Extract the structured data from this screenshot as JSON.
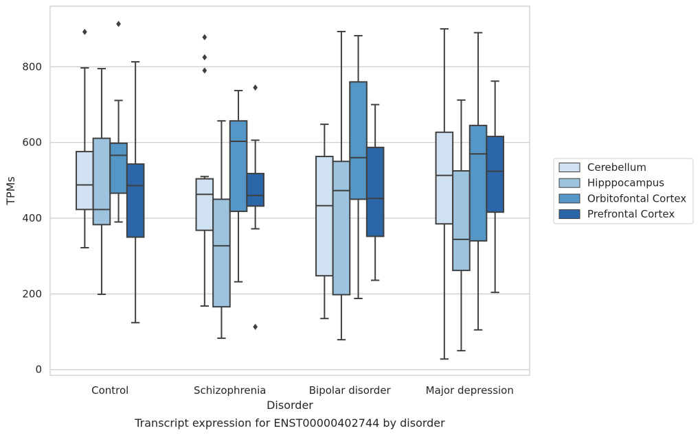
{
  "caption": "Transcript expression for ENST00000402744 by disorder",
  "chart_data": {
    "type": "box",
    "xlabel": "Disorder",
    "ylabel": "TPMs",
    "ylim": [
      -15,
      960
    ],
    "yticks": [
      0,
      200,
      400,
      600,
      800
    ],
    "grid": "horizontal",
    "legend_position": "right",
    "categories": [
      "Control",
      "Schizophrenia",
      "Bipolar disorder",
      "Major depression"
    ],
    "series": [
      {
        "name": "Cerebellum",
        "color": "#d0e1f1",
        "boxes": [
          {
            "whisker_low": 322,
            "q1": 423,
            "median": 488,
            "q3": 576,
            "whisker_high": 797,
            "outliers": [
              892
            ]
          },
          {
            "whisker_low": 168,
            "q1": 368,
            "median": 463,
            "q3": 504,
            "whisker_high": 510,
            "outliers": [
              790,
              825,
              878
            ]
          },
          {
            "whisker_low": 135,
            "q1": 248,
            "median": 433,
            "q3": 563,
            "whisker_high": 648,
            "outliers": []
          },
          {
            "whisker_low": 28,
            "q1": 385,
            "median": 513,
            "q3": 627,
            "whisker_high": 900,
            "outliers": []
          }
        ]
      },
      {
        "name": "Hipppocampus",
        "color": "#9dc3de",
        "boxes": [
          {
            "whisker_low": 199,
            "q1": 383,
            "median": 423,
            "q3": 611,
            "whisker_high": 795,
            "outliers": []
          },
          {
            "whisker_low": 83,
            "q1": 166,
            "median": 327,
            "q3": 450,
            "whisker_high": 657,
            "outliers": []
          },
          {
            "whisker_low": 79,
            "q1": 198,
            "median": 473,
            "q3": 550,
            "whisker_high": 893,
            "outliers": []
          },
          {
            "whisker_low": 50,
            "q1": 262,
            "median": 344,
            "q3": 525,
            "whisker_high": 712,
            "outliers": []
          }
        ]
      },
      {
        "name": "Orbitofontal Cortex",
        "color": "#5496c6",
        "boxes": [
          {
            "whisker_low": 390,
            "q1": 466,
            "median": 566,
            "q3": 598,
            "whisker_high": 711,
            "outliers": [
              913
            ]
          },
          {
            "whisker_low": 232,
            "q1": 418,
            "median": 603,
            "q3": 657,
            "whisker_high": 737,
            "outliers": []
          },
          {
            "whisker_low": 188,
            "q1": 450,
            "median": 560,
            "q3": 760,
            "whisker_high": 882,
            "outliers": []
          },
          {
            "whisker_low": 105,
            "q1": 340,
            "median": 570,
            "q3": 645,
            "whisker_high": 890,
            "outliers": []
          }
        ]
      },
      {
        "name": "Prefrontal Cortex",
        "color": "#2b66a8",
        "boxes": [
          {
            "whisker_low": 124,
            "q1": 350,
            "median": 486,
            "q3": 543,
            "whisker_high": 813,
            "outliers": []
          },
          {
            "whisker_low": 372,
            "q1": 432,
            "median": 460,
            "q3": 518,
            "whisker_high": 606,
            "outliers": [
              745,
              113
            ]
          },
          {
            "whisker_low": 236,
            "q1": 352,
            "median": 452,
            "q3": 587,
            "whisker_high": 700,
            "outliers": []
          },
          {
            "whisker_low": 204,
            "q1": 416,
            "median": 524,
            "q3": 616,
            "whisker_high": 762,
            "outliers": []
          }
        ]
      }
    ]
  }
}
